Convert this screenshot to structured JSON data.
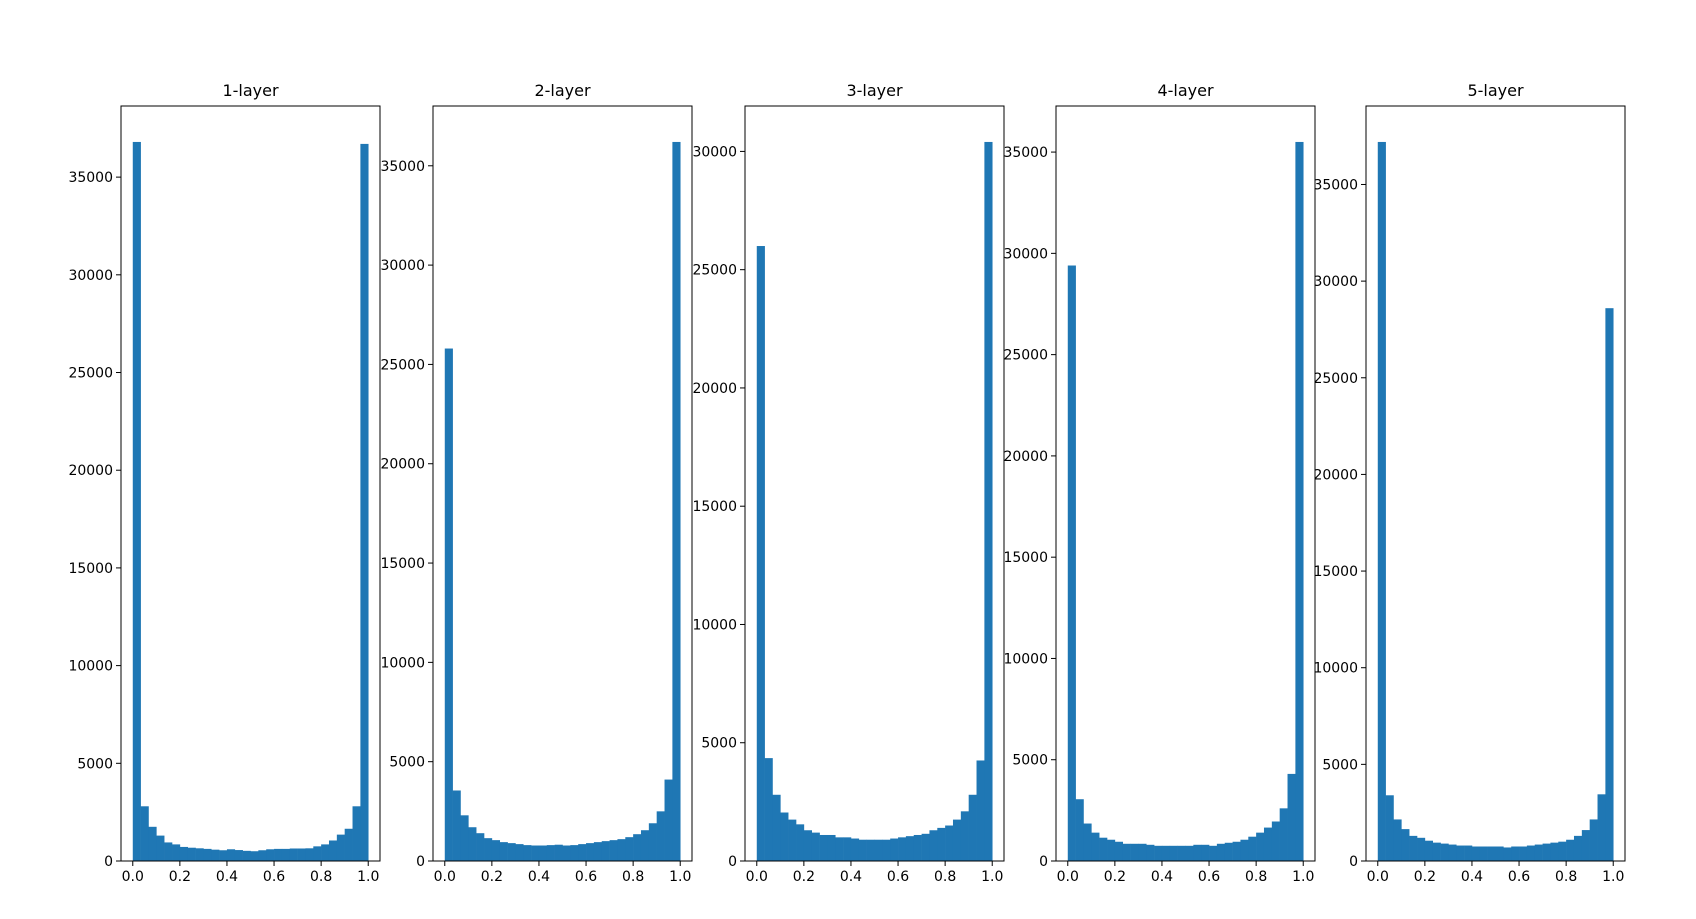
{
  "chart_data": [
    {
      "type": "histogram",
      "title": "1-layer",
      "color": "#1f77b4",
      "bins": [
        0,
        0.0333,
        0.0667,
        0.1,
        0.1333,
        0.1667,
        0.2,
        0.2333,
        0.2667,
        0.3,
        0.3333,
        0.3667,
        0.4,
        0.4333,
        0.4667,
        0.5,
        0.5333,
        0.5667,
        0.6,
        0.6333,
        0.6667,
        0.7,
        0.7333,
        0.7667,
        0.8,
        0.8333,
        0.8667,
        0.9,
        0.9333,
        0.9667,
        1
      ],
      "values": [
        36800,
        2800,
        1750,
        1300,
        950,
        850,
        720,
        680,
        650,
        620,
        580,
        550,
        600,
        560,
        520,
        500,
        550,
        600,
        620,
        620,
        640,
        640,
        650,
        750,
        850,
        1050,
        1350,
        1650,
        2800,
        36700
      ],
      "xlim": [
        -0.05,
        1.05
      ],
      "xticks": [
        {
          "value": 0,
          "label": "0.0"
        },
        0.2,
        0.4,
        0.6,
        0.8,
        {
          "value": 1,
          "label": "1.0"
        }
      ],
      "ylim": [
        0,
        38640
      ],
      "yticks": [
        0,
        5000,
        10000,
        15000,
        20000,
        25000,
        30000,
        35000
      ]
    },
    {
      "type": "histogram",
      "title": "2-layer",
      "color": "#1f77b4",
      "bins": [
        0,
        0.0333,
        0.0667,
        0.1,
        0.1333,
        0.1667,
        0.2,
        0.2333,
        0.2667,
        0.3,
        0.3333,
        0.3667,
        0.4,
        0.4333,
        0.4667,
        0.5,
        0.5333,
        0.5667,
        0.6,
        0.6333,
        0.6667,
        0.7,
        0.7333,
        0.7667,
        0.8,
        0.8333,
        0.8667,
        0.9,
        0.9333,
        0.9667,
        1
      ],
      "values": [
        25800,
        3550,
        2300,
        1700,
        1400,
        1150,
        1050,
        950,
        900,
        850,
        800,
        780,
        780,
        800,
        820,
        780,
        800,
        850,
        900,
        950,
        1000,
        1050,
        1100,
        1200,
        1350,
        1550,
        1900,
        2500,
        4100,
        36200
      ],
      "xlim": [
        -0.05,
        1.05
      ],
      "xticks": [
        {
          "value": 0,
          "label": "0.0"
        },
        0.2,
        0.4,
        0.6,
        0.8,
        {
          "value": 1,
          "label": "1.0"
        }
      ],
      "ylim": [
        0,
        38010
      ],
      "yticks": [
        0,
        5000,
        10000,
        15000,
        20000,
        25000,
        30000,
        35000
      ]
    },
    {
      "type": "histogram",
      "title": "3-layer",
      "color": "#1f77b4",
      "bins": [
        0,
        0.0333,
        0.0667,
        0.1,
        0.1333,
        0.1667,
        0.2,
        0.2333,
        0.2667,
        0.3,
        0.3333,
        0.3667,
        0.4,
        0.4333,
        0.4667,
        0.5,
        0.5333,
        0.5667,
        0.6,
        0.6333,
        0.6667,
        0.7,
        0.7333,
        0.7667,
        0.8,
        0.8333,
        0.8667,
        0.9,
        0.9333,
        0.9667,
        1
      ],
      "values": [
        26000,
        4350,
        2800,
        2050,
        1750,
        1550,
        1300,
        1200,
        1100,
        1100,
        1000,
        1000,
        950,
        900,
        900,
        900,
        900,
        950,
        1000,
        1050,
        1100,
        1150,
        1300,
        1400,
        1500,
        1750,
        2100,
        2800,
        4250,
        30400
      ],
      "xlim": [
        -0.05,
        1.05
      ],
      "xticks": [
        {
          "value": 0,
          "label": "0.0"
        },
        0.2,
        0.4,
        0.6,
        0.8,
        {
          "value": 1,
          "label": "1.0"
        }
      ],
      "ylim": [
        0,
        31920
      ],
      "yticks": [
        0,
        5000,
        10000,
        15000,
        20000,
        25000,
        30000
      ]
    },
    {
      "type": "histogram",
      "title": "4-layer",
      "color": "#1f77b4",
      "bins": [
        0,
        0.0333,
        0.0667,
        0.1,
        0.1333,
        0.1667,
        0.2,
        0.2333,
        0.2667,
        0.3,
        0.3333,
        0.3667,
        0.4,
        0.4333,
        0.4667,
        0.5,
        0.5333,
        0.5667,
        0.6,
        0.6333,
        0.6667,
        0.7,
        0.7333,
        0.7667,
        0.8,
        0.8333,
        0.8667,
        0.9,
        0.9333,
        0.9667,
        1
      ],
      "values": [
        29400,
        3050,
        1850,
        1400,
        1150,
        1050,
        950,
        850,
        850,
        850,
        800,
        750,
        750,
        750,
        750,
        750,
        800,
        800,
        750,
        850,
        900,
        950,
        1050,
        1200,
        1400,
        1650,
        1950,
        2600,
        4300,
        35500
      ],
      "xlim": [
        -0.05,
        1.05
      ],
      "xticks": [
        {
          "value": 0,
          "label": "0.0"
        },
        0.2,
        0.4,
        0.6,
        0.8,
        {
          "value": 1,
          "label": "1.0"
        }
      ],
      "ylim": [
        0,
        37275
      ],
      "yticks": [
        0,
        5000,
        10000,
        15000,
        20000,
        25000,
        30000,
        35000
      ]
    },
    {
      "type": "histogram",
      "title": "5-layer",
      "color": "#1f77b4",
      "bins": [
        0,
        0.0333,
        0.0667,
        0.1,
        0.1333,
        0.1667,
        0.2,
        0.2333,
        0.2667,
        0.3,
        0.3333,
        0.3667,
        0.4,
        0.4333,
        0.4667,
        0.5,
        0.5333,
        0.5667,
        0.6,
        0.6333,
        0.6667,
        0.7,
        0.7333,
        0.7667,
        0.8,
        0.8333,
        0.8667,
        0.9,
        0.9333,
        0.9667,
        1
      ],
      "values": [
        37200,
        3400,
        2150,
        1650,
        1300,
        1200,
        1050,
        950,
        900,
        850,
        800,
        800,
        750,
        750,
        750,
        750,
        700,
        750,
        750,
        800,
        850,
        900,
        950,
        1000,
        1100,
        1300,
        1600,
        2150,
        3450,
        28600
      ],
      "xlim": [
        -0.05,
        1.05
      ],
      "xticks": [
        {
          "value": 0,
          "label": "0.0"
        },
        0.2,
        0.4,
        0.6,
        0.8,
        {
          "value": 1,
          "label": "1.0"
        }
      ],
      "ylim": [
        0,
        39060
      ],
      "yticks": [
        0,
        5000,
        10000,
        15000,
        20000,
        25000,
        30000,
        35000
      ]
    }
  ]
}
